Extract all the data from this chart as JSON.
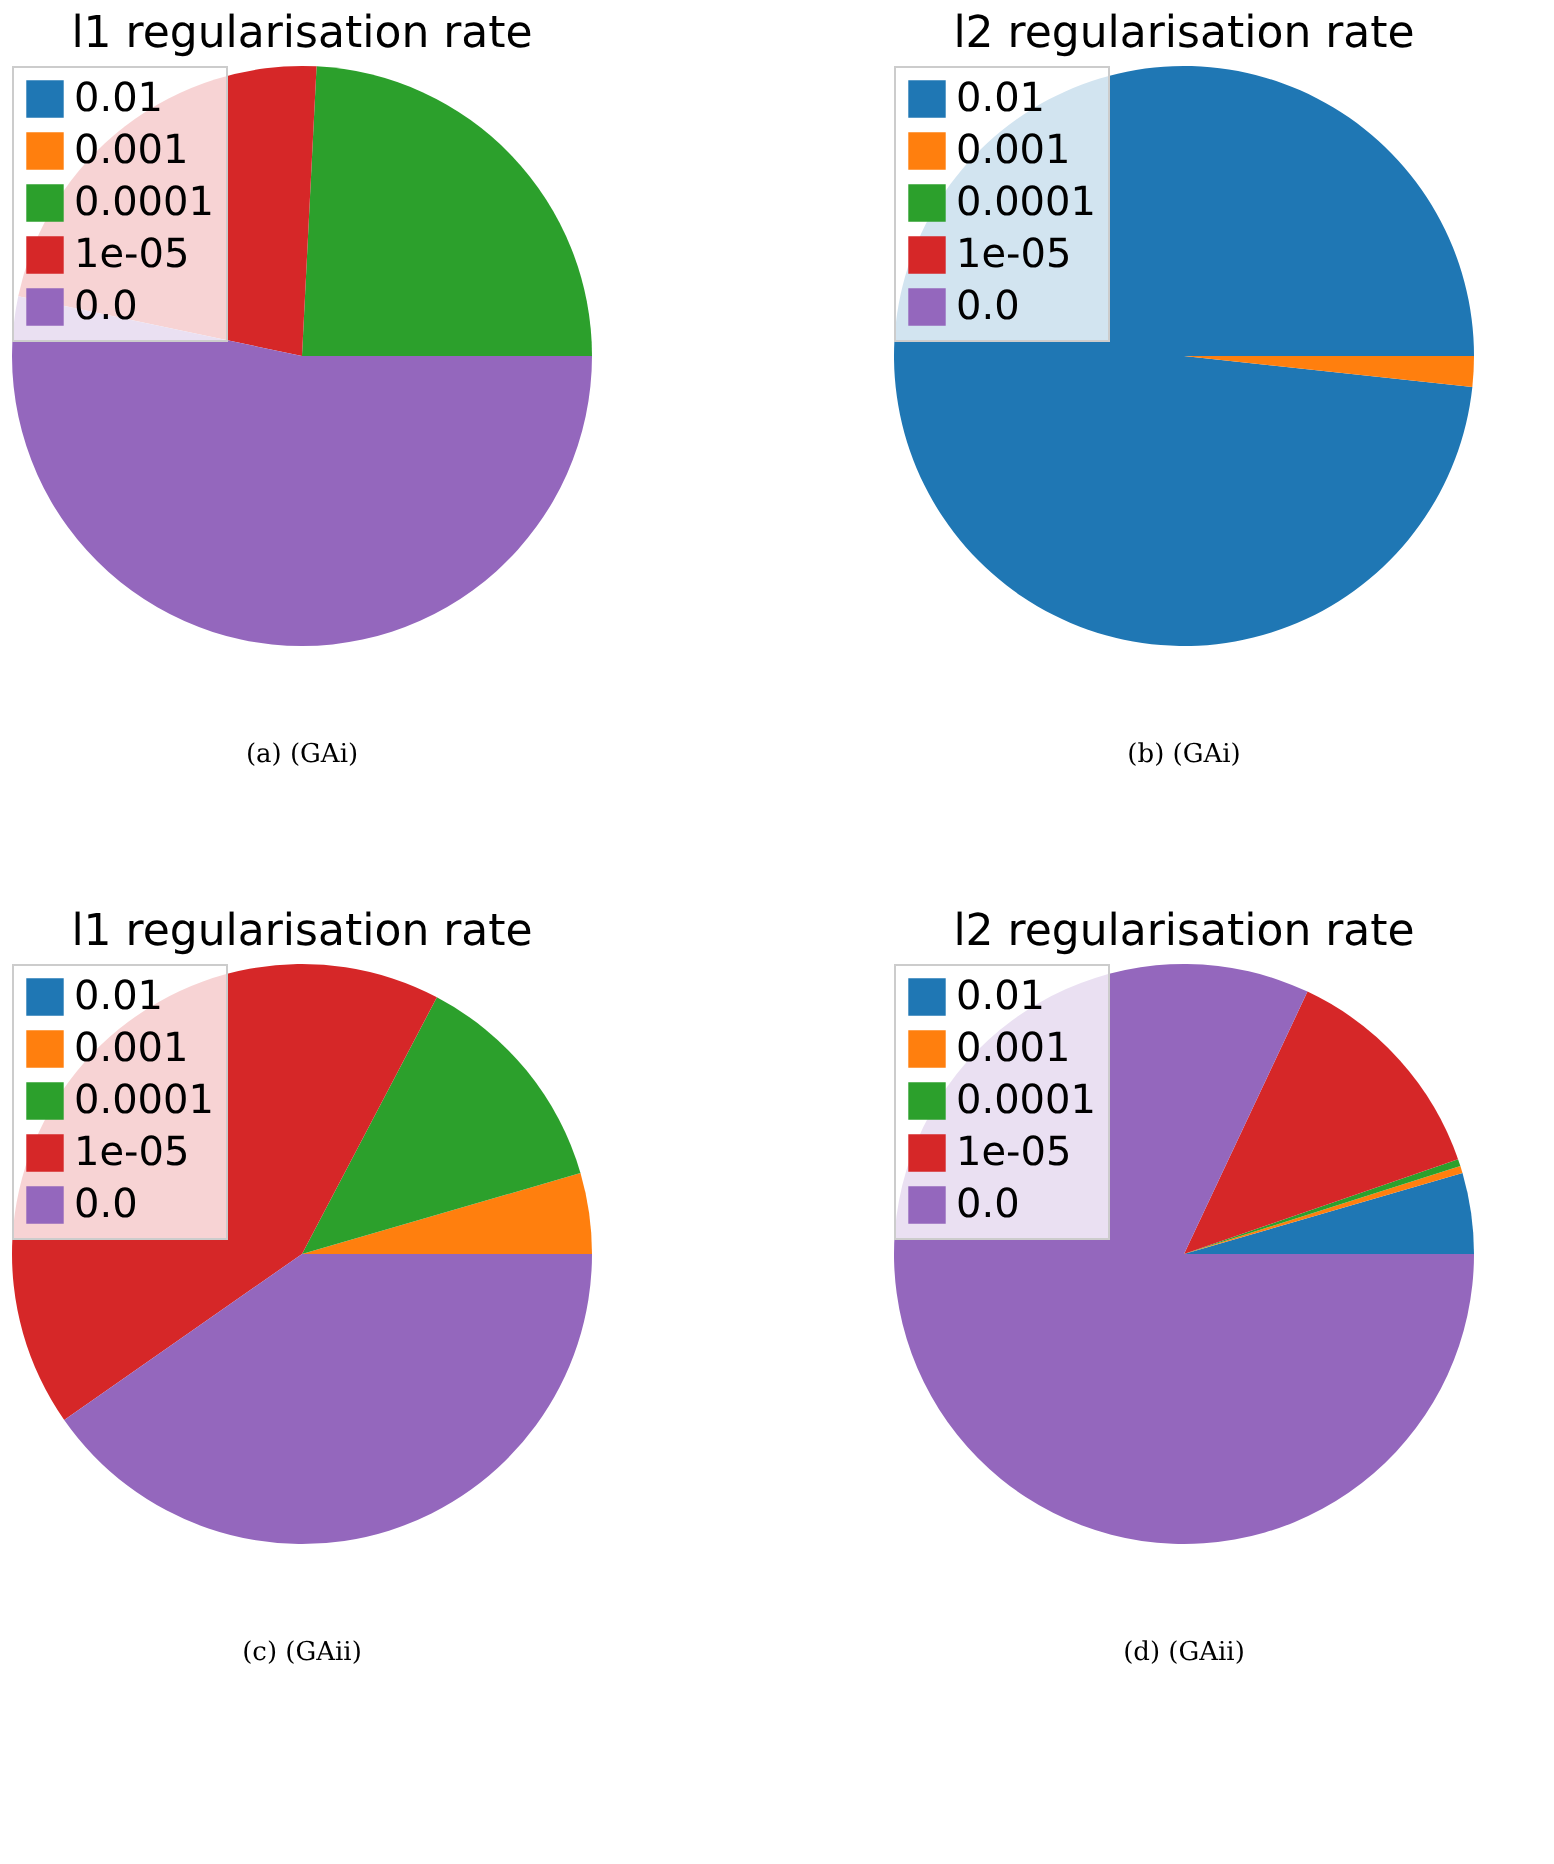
{
  "chart_data": [
    {
      "type": "pie",
      "title": "l1 regularisation rate",
      "categories": [
        "0.01",
        "0.001",
        "0.0001",
        "1e-05",
        "0.0"
      ],
      "values": [
        0,
        0,
        24.2,
        22.5,
        53.3
      ],
      "colors": [
        "#1f77b4",
        "#ff7f0e",
        "#2ca02c",
        "#d62728",
        "#9467bd"
      ],
      "legend": "top left",
      "annotations": [
        "(a) (GAi)"
      ]
    },
    {
      "type": "pie",
      "title": "l2 regularisation rate",
      "categories": [
        "0.01",
        "0.001",
        "0.0001",
        "1e-05",
        "0.0"
      ],
      "values": [
        98.3,
        1.7,
        0,
        0,
        0
      ],
      "colors": [
        "#1f77b4",
        "#ff7f0e",
        "#2ca02c",
        "#d62728",
        "#9467bd"
      ],
      "legend": "top left",
      "annotations": [
        "(b) (GAi)"
      ]
    },
    {
      "type": "pie",
      "title": "l1 regularisation rate",
      "categories": [
        "0.01",
        "0.001",
        "0.0001",
        "1e-05",
        "0.0"
      ],
      "values": [
        0,
        4.5,
        12.8,
        42.4,
        40.3
      ],
      "colors": [
        "#1f77b4",
        "#ff7f0e",
        "#2ca02c",
        "#d62728",
        "#9467bd"
      ],
      "legend": "top left",
      "annotations": [
        "(c) (GAii)"
      ]
    },
    {
      "type": "pie",
      "title": "l2 regularisation rate",
      "categories": [
        "0.01",
        "0.001",
        "0.0001",
        "1e-05",
        "0.0"
      ],
      "values": [
        4.5,
        0.4,
        0.4,
        12.7,
        82.0
      ],
      "colors": [
        "#1f77b4",
        "#ff7f0e",
        "#2ca02c",
        "#d62728",
        "#9467bd"
      ],
      "legend": "top left",
      "annotations": [
        "(d) (GAii)"
      ]
    }
  ]
}
